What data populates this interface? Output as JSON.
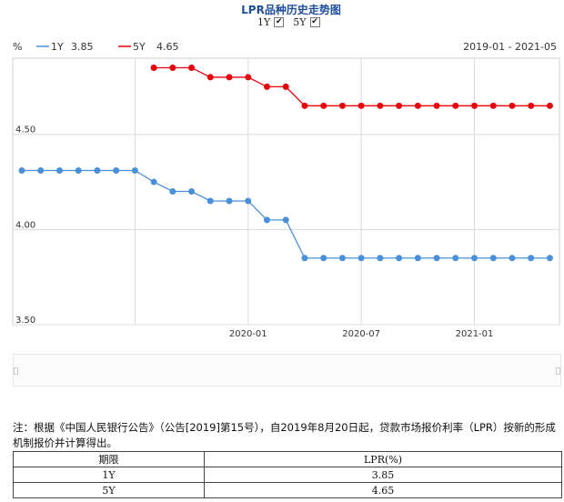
{
  "title": "LPR品种历史走势图",
  "toggles": [
    {
      "label": "1Y",
      "checked": true
    },
    {
      "label": "5Y",
      "checked": true
    }
  ],
  "legend": {
    "unit": "%",
    "items": [
      {
        "name": "1Y",
        "value": "3.85",
        "color": "#4a90d9"
      },
      {
        "name": "5Y",
        "value": "4.65",
        "color": "#e8000b"
      }
    ],
    "range": "2019-01 - 2021-05"
  },
  "chart_data": {
    "type": "line",
    "x": [
      "2019-01",
      "2019-02",
      "2019-03",
      "2019-04",
      "2019-05",
      "2019-06",
      "2019-07",
      "2019-08",
      "2019-09",
      "2019-10",
      "2019-11",
      "2019-12",
      "2020-01",
      "2020-02",
      "2020-03",
      "2020-04",
      "2020-05",
      "2020-06",
      "2020-07",
      "2020-08",
      "2020-09",
      "2020-10",
      "2020-11",
      "2020-12",
      "2021-01",
      "2021-02",
      "2021-03",
      "2021-04",
      "2021-05"
    ],
    "series": [
      {
        "name": "1Y",
        "color": "#4a90d9",
        "values": [
          4.31,
          4.31,
          4.31,
          4.31,
          4.31,
          4.31,
          4.31,
          4.25,
          4.2,
          4.2,
          4.15,
          4.15,
          4.15,
          4.05,
          4.05,
          3.85,
          3.85,
          3.85,
          3.85,
          3.85,
          3.85,
          3.85,
          3.85,
          3.85,
          3.85,
          3.85,
          3.85,
          3.85,
          3.85
        ]
      },
      {
        "name": "5Y",
        "color": "#e8000b",
        "values": [
          null,
          null,
          null,
          null,
          null,
          null,
          null,
          4.85,
          4.85,
          4.85,
          4.8,
          4.8,
          4.8,
          4.75,
          4.75,
          4.65,
          4.65,
          4.65,
          4.65,
          4.65,
          4.65,
          4.65,
          4.65,
          4.65,
          4.65,
          4.65,
          4.65,
          4.65,
          4.65
        ]
      }
    ],
    "ylim": [
      3.5,
      4.9
    ],
    "yticks": [
      "4.50",
      "4.00",
      "3.50"
    ],
    "xtick_labels": [
      "2020-01",
      "2020-07",
      "2021-01"
    ],
    "grid": true
  },
  "note": "注：根据《中国人民银行公告》（公告[2019]第15号），自2019年8月20日起，贷款市场报价利率（LPR）按新的形成机制报价并计算得出。",
  "table": {
    "headers": [
      "期限",
      "LPR(%)"
    ],
    "rows": [
      [
        "1Y",
        "3.85"
      ],
      [
        "5Y",
        "4.65"
      ]
    ]
  }
}
